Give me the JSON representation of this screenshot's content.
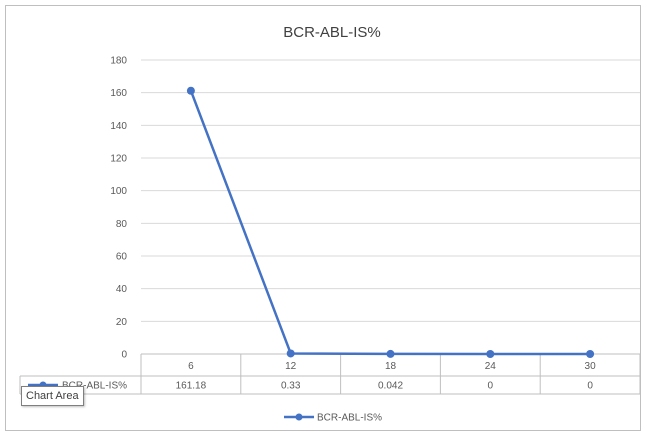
{
  "chart_data": {
    "type": "line",
    "title": "BCR-ABL-IS%",
    "x": [
      "6",
      "12",
      "18",
      "24",
      "30"
    ],
    "series": [
      {
        "name": "BCR-ABL-IS%",
        "values": [
          161.18,
          0.33,
          0.042,
          0,
          0
        ],
        "table_values": [
          "161.18",
          "0.33",
          "0.042",
          "0",
          "0"
        ],
        "color": "#4472c4"
      }
    ],
    "ylim": [
      0,
      180
    ],
    "yticks": [
      "0",
      "20",
      "40",
      "60",
      "80",
      "100",
      "120",
      "140",
      "160",
      "180"
    ],
    "grid": true,
    "data_table": true,
    "legend": "bottom"
  },
  "tooltip": "Chart Area",
  "colors": {
    "gridline": "#d9d9d9",
    "axis": "#bfbfbf",
    "series": "#4472c4"
  }
}
